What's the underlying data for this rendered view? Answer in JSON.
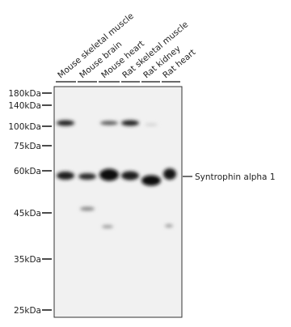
{
  "lanes": [
    "Mouse skeletal muscle",
    "Mouse brain",
    "Mouse heart",
    "Rat skeletal muscle",
    "Rat kidney",
    "Rat heart"
  ],
  "markers": [
    "180kDa",
    "140kDa",
    "100kDa",
    "75kDa",
    "60kDa",
    "45kDa",
    "35kDa",
    "25kDa"
  ],
  "target_label": "Syntrophin alpha 1"
}
